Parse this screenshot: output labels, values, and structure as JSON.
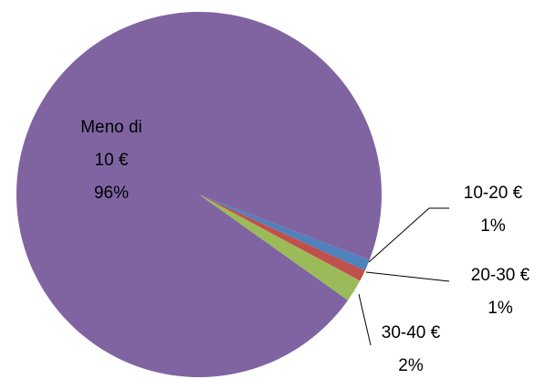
{
  "chart_data": {
    "type": "pie",
    "categories": [
      "10-20 €",
      "20-30 €",
      "30-40 €",
      "Meno di 10 €"
    ],
    "values": [
      1,
      1,
      2,
      96
    ],
    "value_labels": [
      "1%",
      "1%",
      "2%",
      "96%"
    ],
    "colors": [
      "#4f81bd",
      "#c0504d",
      "#9bbb59",
      "#8064a2"
    ]
  }
}
